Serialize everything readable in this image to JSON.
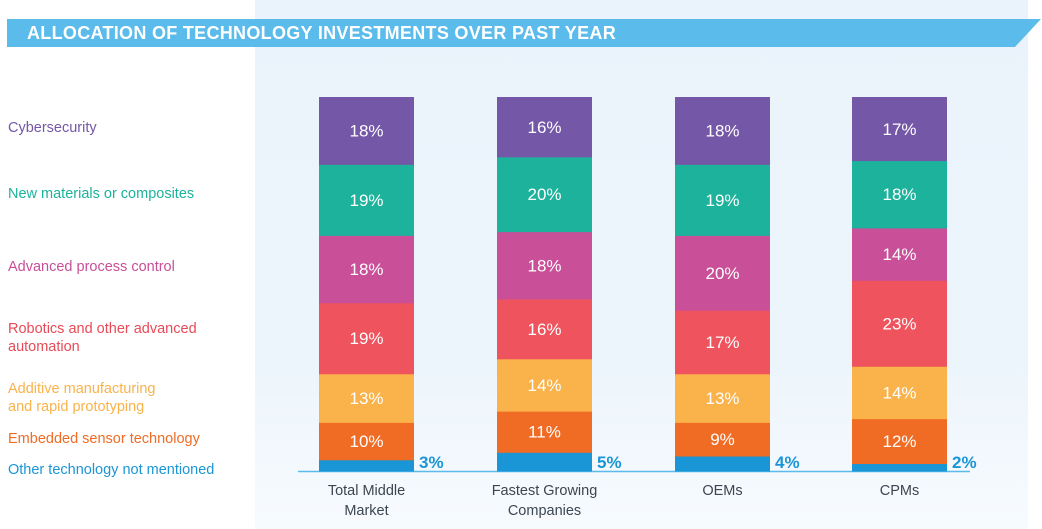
{
  "title": "ALLOCATION OF TECHNOLOGY INVESTMENTS OVER PAST YEAR",
  "chart_data": {
    "type": "bar",
    "stacked": true,
    "title": "ALLOCATION OF TECHNOLOGY INVESTMENTS OVER PAST YEAR",
    "xlabel": "",
    "ylabel": "",
    "categories": [
      "Total Middle Market",
      "Fastest Growing Companies",
      "OEMs",
      "CPMs"
    ],
    "category_lines": [
      [
        "Total Middle",
        "Market"
      ],
      [
        "Fastest Growing",
        "Companies"
      ],
      [
        "OEMs"
      ],
      [
        "CPMs"
      ]
    ],
    "series": [
      {
        "name": "Other technology not mentioned",
        "color": "#1a96d6",
        "label_color": "#1a96d6",
        "values": [
          3,
          5,
          4,
          2
        ]
      },
      {
        "name": "Embedded sensor technology",
        "color": "#f06c25",
        "label_color": "#f06c25",
        "values": [
          10,
          11,
          9,
          12
        ]
      },
      {
        "name": "Additive manufacturing and rapid prototyping",
        "color": "#fab24a",
        "label_color": "#fab24a",
        "values": [
          13,
          14,
          13,
          14
        ]
      },
      {
        "name": "Robotics and other advanced automation",
        "color": "#ef535e",
        "label_color": "#e84a57",
        "values": [
          19,
          16,
          17,
          23
        ]
      },
      {
        "name": "Advanced process control",
        "color": "#c94f98",
        "label_color": "#c94f98",
        "values": [
          18,
          18,
          20,
          14
        ]
      },
      {
        "name": "New materials or composites",
        "color": "#1cb29b",
        "label_color": "#1cb29b",
        "values": [
          19,
          20,
          19,
          18
        ]
      },
      {
        "name": "Cybersecurity",
        "color": "#7557a7",
        "label_color": "#7557a7",
        "values": [
          18,
          16,
          18,
          17
        ]
      }
    ],
    "legend_position": "left",
    "legend_lines": [
      [
        "Cybersecurity"
      ],
      [
        "New materials or composites"
      ],
      [
        "Advanced process control"
      ],
      [
        "Robotics and other advanced",
        "automation"
      ],
      [
        "Additive manufacturing",
        "and rapid prototyping"
      ],
      [
        "Embedded sensor technology"
      ],
      [
        "Other technology not mentioned"
      ]
    ],
    "value_suffix": "%",
    "grid": false
  }
}
